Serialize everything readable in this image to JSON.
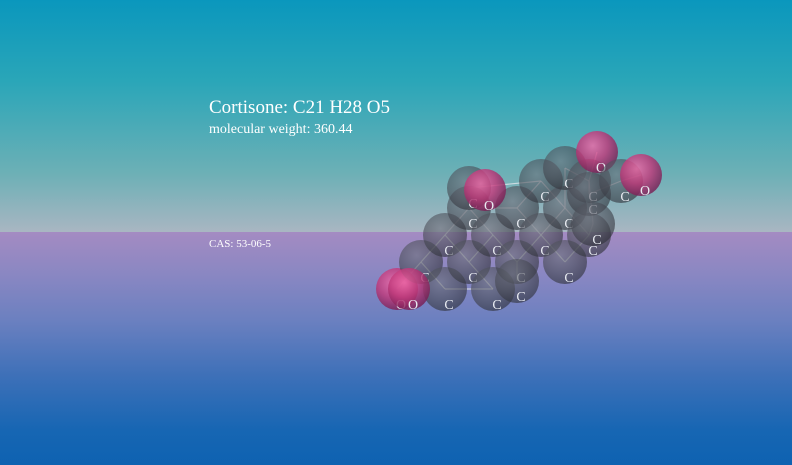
{
  "scene": {
    "title": "Cortisone: C21 H28 O5",
    "subtitle": "molecular weight: 360.44",
    "cas": "CAS: 53-06-5"
  },
  "molecule": {
    "atom_colors": {
      "C": "#4a4d57",
      "O": "#c0397a"
    },
    "atoms": [
      {
        "el": "O",
        "label": "O"
      },
      {
        "el": "C",
        "label": "C"
      },
      {
        "el": "C",
        "label": "C"
      },
      {
        "el": "C",
        "label": "C"
      },
      {
        "el": "C",
        "label": "C"
      },
      {
        "el": "C",
        "label": "C"
      },
      {
        "el": "C",
        "label": "C"
      },
      {
        "el": "C",
        "label": "C"
      },
      {
        "el": "C",
        "label": "C"
      },
      {
        "el": "C",
        "label": "C"
      },
      {
        "el": "C",
        "label": "C"
      },
      {
        "el": "C",
        "label": "C"
      },
      {
        "el": "C",
        "label": "C"
      },
      {
        "el": "C",
        "label": "C"
      },
      {
        "el": "C",
        "label": "C"
      },
      {
        "el": "C",
        "label": "C"
      },
      {
        "el": "C",
        "label": "C"
      },
      {
        "el": "C",
        "label": "C"
      },
      {
        "el": "O",
        "label": "O"
      },
      {
        "el": "C",
        "label": "C"
      },
      {
        "el": "C",
        "label": "C"
      },
      {
        "el": "O",
        "label": "O"
      },
      {
        "el": "C",
        "label": "C"
      },
      {
        "el": "O",
        "label": "O"
      },
      {
        "el": "O",
        "label": "O"
      },
      {
        "el": "C",
        "label": "C"
      }
    ]
  }
}
